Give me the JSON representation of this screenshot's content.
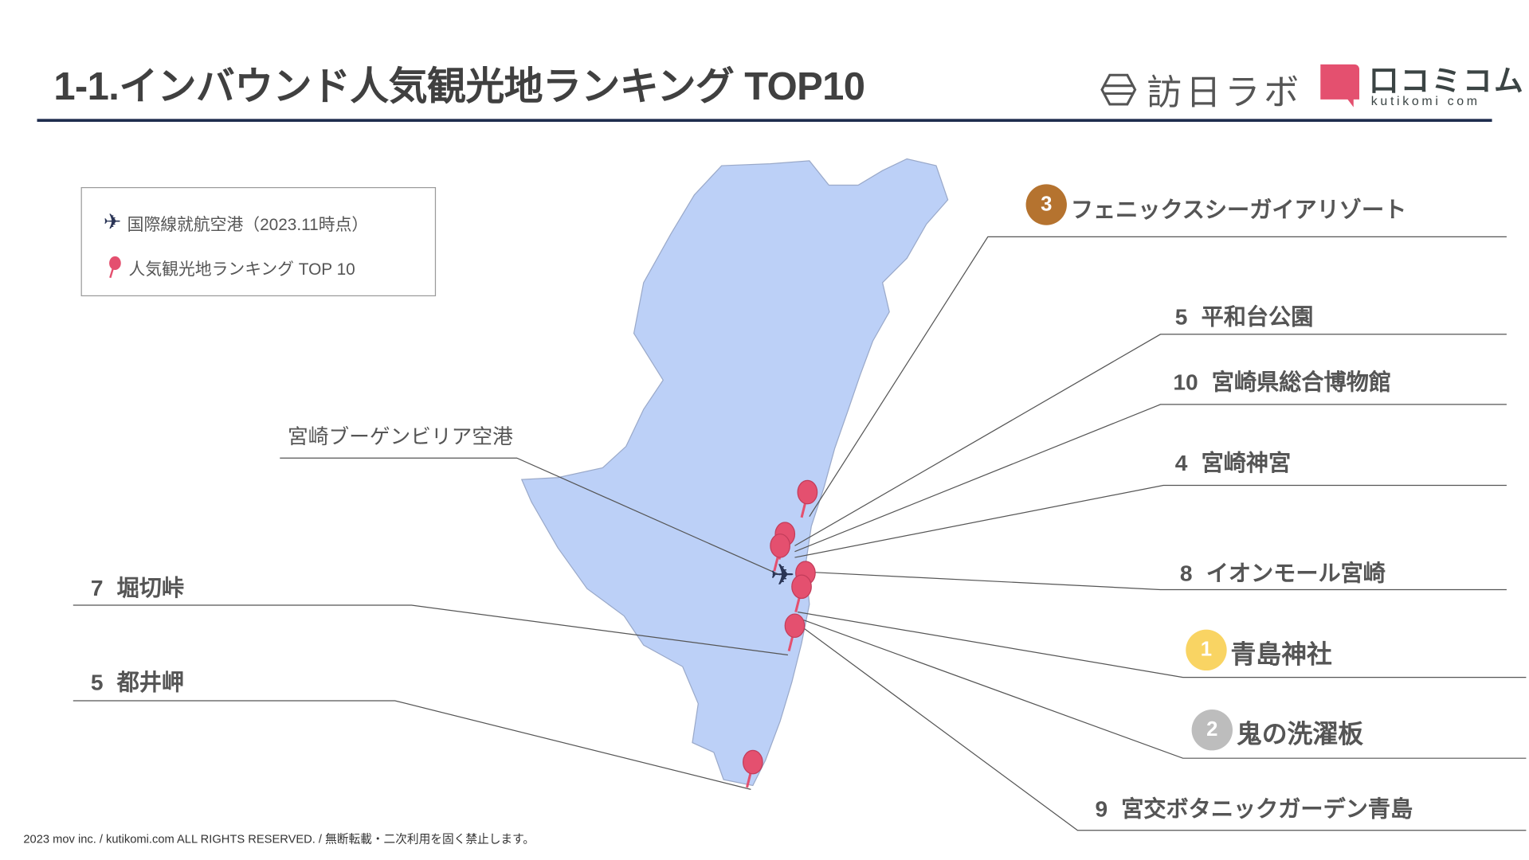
{
  "title": "1-1.インバウンド人気観光地ランキング TOP10",
  "logos": {
    "houjin_lab": "訪日ラボ",
    "kutikomi": "口コミコム",
    "kutikomi_sub": "kutikomi com"
  },
  "legend": {
    "airport": "国際線就航空港（2023.11時点）",
    "ranking": "人気観光地ランキング TOP 10"
  },
  "airport_label": "宮崎ブーゲンビリア空港",
  "spots": [
    {
      "rank": "3",
      "name": "フェニックスシーガイアリゾート",
      "badge_color": "#b5732f"
    },
    {
      "rank": "5",
      "name": "平和台公園"
    },
    {
      "rank": "10",
      "name": "宮崎県総合博物館"
    },
    {
      "rank": "4",
      "name": "宮崎神宮"
    },
    {
      "rank": "8",
      "name": "イオンモール宮崎"
    },
    {
      "rank": "1",
      "name": "青島神社",
      "badge_color": "#f9d463"
    },
    {
      "rank": "2",
      "name": "鬼の洗濯板",
      "badge_color": "#bdbdbd"
    },
    {
      "rank": "9",
      "name": "宮交ボタニックガーデン青島"
    },
    {
      "rank": "7",
      "name": "堀切峠"
    },
    {
      "rank": "5",
      "name": "都井岬"
    }
  ],
  "colors": {
    "map_fill": "#bcd0f7",
    "pin": "#e4506f",
    "plane": "#2a3556",
    "rule": "#1f2d4e"
  },
  "footer": "2023 mov inc. / kutikomi.com ALL RIGHTS RESERVED. / 無断転載・二次利用を固く禁止します。"
}
